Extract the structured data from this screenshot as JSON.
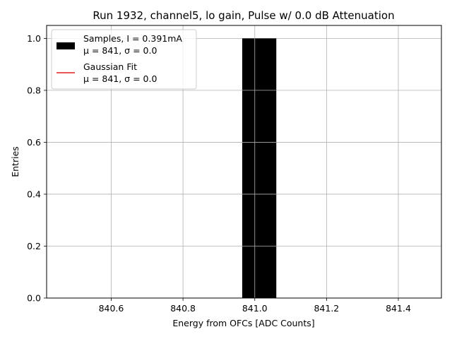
{
  "chart_data": {
    "type": "bar",
    "title": "Run 1932, channel5, lo gain, Pulse w/ 0.0 dB Attenuation",
    "xlabel": "Energy from OFCs [ADC Counts]",
    "ylabel": "Entries",
    "xlim": [
      840.42,
      841.52
    ],
    "ylim": [
      0,
      1.05
    ],
    "xticks": [
      840.6,
      840.8,
      841.0,
      841.2,
      841.4
    ],
    "xtick_labels": [
      "840.6",
      "840.8",
      "841.0",
      "841.2",
      "841.4"
    ],
    "yticks": [
      0.0,
      0.2,
      0.4,
      0.6,
      0.8,
      1.0
    ],
    "ytick_labels": [
      "0.0",
      "0.2",
      "0.4",
      "0.6",
      "0.8",
      "1.0"
    ],
    "grid": true,
    "legend_position": "top-left",
    "bars": [
      {
        "x_left": 840.965,
        "x_right": 841.06,
        "value": 1.0,
        "color": "#000000"
      }
    ],
    "legend": [
      {
        "label_line1": "Samples, I = 0.391mA",
        "label_line2": "μ = 841, σ = 0.0",
        "marker": "patch",
        "color": "#000000"
      },
      {
        "label_line1": "Gaussian Fit",
        "label_line2": "μ = 841, σ = 0.0",
        "marker": "line",
        "color": "#e0201b"
      }
    ]
  }
}
